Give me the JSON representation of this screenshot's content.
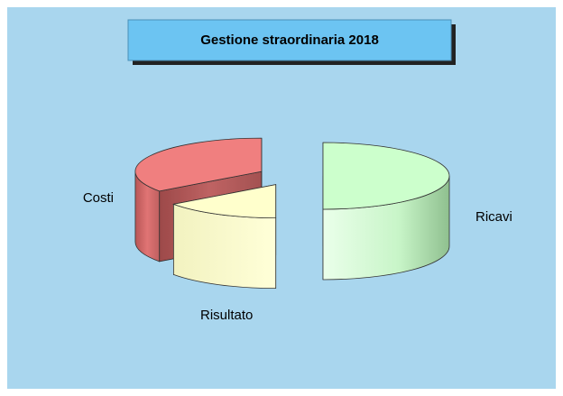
{
  "chart_data": {
    "type": "pie",
    "title": "Gestione straordinaria 2018",
    "categories": [
      "Ricavi",
      "Risultato",
      "Costi"
    ],
    "values": [
      50,
      15,
      35
    ],
    "colors": [
      "#ccffcc",
      "#ffffcc",
      "#f07f7f"
    ]
  }
}
